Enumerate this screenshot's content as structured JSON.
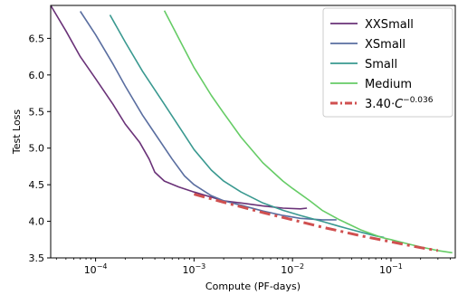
{
  "chart_data": {
    "type": "line",
    "xlabel": "Compute (PF-days)",
    "ylabel": "Test Loss",
    "xscale": "log",
    "xlim": [
      3.5e-05,
      0.45
    ],
    "ylim": [
      3.5,
      6.95
    ],
    "grid": false,
    "legend_position": "top-right",
    "x_ticks": [
      {
        "value": 0.0001,
        "base": "10",
        "exp": "−4"
      },
      {
        "value": 0.001,
        "base": "10",
        "exp": "−3"
      },
      {
        "value": 0.01,
        "base": "10",
        "exp": "−2"
      },
      {
        "value": 0.1,
        "base": "10",
        "exp": "−1"
      }
    ],
    "y_ticks": [
      {
        "value": 3.5,
        "label": "3.5"
      },
      {
        "value": 4.0,
        "label": "4.0"
      },
      {
        "value": 4.5,
        "label": "4.5"
      },
      {
        "value": 5.0,
        "label": "5.0"
      },
      {
        "value": 5.5,
        "label": "5.5"
      },
      {
        "value": 6.0,
        "label": "6.0"
      },
      {
        "value": 6.5,
        "label": "6.5"
      }
    ],
    "series": [
      {
        "name": "XXSmall",
        "color": "#6a3278",
        "style": "solid",
        "points": [
          [
            3.5e-05,
            6.95
          ],
          [
            5e-05,
            6.6
          ],
          [
            7e-05,
            6.25
          ],
          [
            0.0001,
            5.95
          ],
          [
            0.00015,
            5.6
          ],
          [
            0.0002,
            5.33
          ],
          [
            0.00028,
            5.08
          ],
          [
            0.00035,
            4.85
          ],
          [
            0.0004,
            4.67
          ],
          [
            0.0005,
            4.55
          ],
          [
            0.0007,
            4.47
          ],
          [
            0.001,
            4.4
          ],
          [
            0.0015,
            4.33
          ],
          [
            0.002,
            4.28
          ],
          [
            0.003,
            4.25
          ],
          [
            0.005,
            4.21
          ],
          [
            0.008,
            4.18
          ],
          [
            0.012,
            4.17
          ],
          [
            0.014,
            4.18
          ]
        ]
      },
      {
        "name": "XSmall",
        "color": "#5a6ea0",
        "style": "solid",
        "points": [
          [
            7e-05,
            6.87
          ],
          [
            0.0001,
            6.55
          ],
          [
            0.00015,
            6.15
          ],
          [
            0.0002,
            5.85
          ],
          [
            0.0003,
            5.45
          ],
          [
            0.0004,
            5.2
          ],
          [
            0.0006,
            4.85
          ],
          [
            0.0008,
            4.62
          ],
          [
            0.001,
            4.5
          ],
          [
            0.0015,
            4.35
          ],
          [
            0.002,
            4.28
          ],
          [
            0.003,
            4.22
          ],
          [
            0.005,
            4.14
          ],
          [
            0.008,
            4.08
          ],
          [
            0.012,
            4.04
          ],
          [
            0.02,
            4.02
          ],
          [
            0.028,
            4.02
          ]
        ]
      },
      {
        "name": "Small",
        "color": "#3a9990",
        "style": "solid",
        "points": [
          [
            0.00014,
            6.82
          ],
          [
            0.0002,
            6.45
          ],
          [
            0.0003,
            6.05
          ],
          [
            0.0005,
            5.6
          ],
          [
            0.0008,
            5.18
          ],
          [
            0.001,
            4.98
          ],
          [
            0.0015,
            4.7
          ],
          [
            0.002,
            4.55
          ],
          [
            0.003,
            4.4
          ],
          [
            0.005,
            4.25
          ],
          [
            0.008,
            4.15
          ],
          [
            0.012,
            4.08
          ],
          [
            0.02,
            4.0
          ],
          [
            0.03,
            3.93
          ],
          [
            0.05,
            3.85
          ],
          [
            0.07,
            3.8
          ],
          [
            0.085,
            3.78
          ]
        ]
      },
      {
        "name": "Medium",
        "color": "#66cc66",
        "style": "solid",
        "points": [
          [
            0.0005,
            6.88
          ],
          [
            0.0008,
            6.35
          ],
          [
            0.001,
            6.1
          ],
          [
            0.0015,
            5.72
          ],
          [
            0.002,
            5.48
          ],
          [
            0.003,
            5.15
          ],
          [
            0.005,
            4.8
          ],
          [
            0.008,
            4.55
          ],
          [
            0.01,
            4.45
          ],
          [
            0.015,
            4.28
          ],
          [
            0.02,
            4.15
          ],
          [
            0.03,
            4.02
          ],
          [
            0.05,
            3.88
          ],
          [
            0.08,
            3.78
          ],
          [
            0.1,
            3.75
          ],
          [
            0.15,
            3.69
          ],
          [
            0.2,
            3.65
          ],
          [
            0.3,
            3.6
          ],
          [
            0.42,
            3.57
          ]
        ]
      },
      {
        "name": "3.40⋅C^−0.036",
        "legend_main": "3.40⋅",
        "legend_var": "C",
        "legend_exp": "−0.036",
        "color": "#d05050",
        "style": "dashdot",
        "points": [
          [
            0.001,
            4.37
          ],
          [
            0.002,
            4.26
          ],
          [
            0.005,
            4.12
          ],
          [
            0.01,
            4.02
          ],
          [
            0.02,
            3.92
          ],
          [
            0.05,
            3.8
          ],
          [
            0.1,
            3.72
          ],
          [
            0.2,
            3.64
          ],
          [
            0.3,
            3.6
          ]
        ]
      }
    ]
  }
}
